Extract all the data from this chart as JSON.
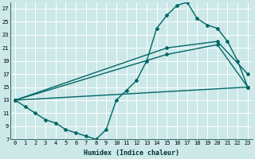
{
  "xlabel": "Humidex (Indice chaleur)",
  "bg_color": "#cce8e8",
  "grid_color": "#ffffff",
  "line_color": "#006666",
  "xlim": [
    -0.5,
    23.5
  ],
  "ylim": [
    7,
    28
  ],
  "xticks": [
    0,
    1,
    2,
    3,
    4,
    5,
    6,
    7,
    8,
    9,
    10,
    11,
    12,
    13,
    14,
    15,
    16,
    17,
    18,
    19,
    20,
    21,
    22,
    23
  ],
  "yticks": [
    7,
    9,
    11,
    13,
    15,
    17,
    19,
    21,
    23,
    25,
    27
  ],
  "lines": [
    {
      "x": [
        0,
        1,
        2,
        3,
        4,
        5,
        6,
        7,
        8,
        9,
        10,
        11,
        12,
        13,
        14,
        15,
        16,
        17,
        18,
        19,
        20,
        21,
        22,
        23
      ],
      "y": [
        13,
        12,
        11,
        10,
        9.5,
        8.5,
        8,
        7.5,
        7,
        8.5,
        13,
        14.5,
        16,
        19,
        24,
        26,
        27.5,
        28,
        25.5,
        24.5,
        24,
        22,
        19,
        15
      ],
      "marker": "D",
      "markersize": 2.0,
      "linewidth": 1.0
    },
    {
      "x": [
        0,
        15,
        20,
        23
      ],
      "y": [
        13,
        21,
        22,
        17
      ],
      "marker": "D",
      "markersize": 2.0,
      "linewidth": 1.0
    },
    {
      "x": [
        0,
        15,
        20,
        23
      ],
      "y": [
        13,
        20,
        21.5,
        15
      ],
      "marker": "D",
      "markersize": 2.0,
      "linewidth": 1.0
    },
    {
      "x": [
        0,
        23
      ],
      "y": [
        13,
        15
      ],
      "marker": "D",
      "markersize": 2.0,
      "linewidth": 1.0
    }
  ]
}
